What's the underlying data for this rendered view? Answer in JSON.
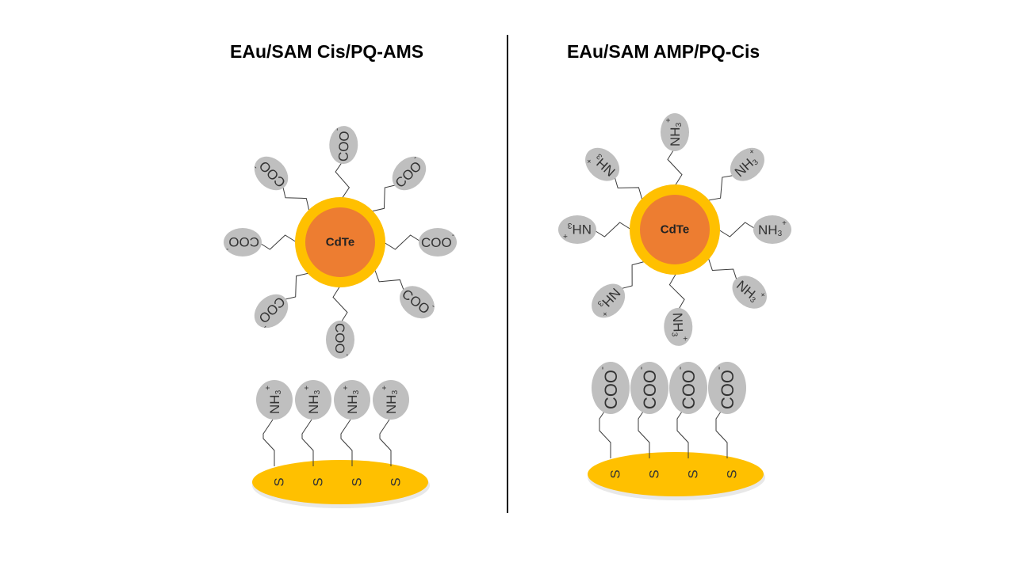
{
  "titles": {
    "left": "EAu/SAM Cis/PQ-AMS",
    "right": "EAu/SAM AMP/PQ-Cis"
  },
  "core_label": "CdTe",
  "groups": {
    "carboxylate": {
      "base": "COO",
      "charge": "-"
    },
    "ammonium": {
      "base": "NH",
      "subscript": "3",
      "charge": "+"
    }
  },
  "surface_atom": "S",
  "colors": {
    "gold": "#FFC000",
    "core": "#ED7D31",
    "ligand_ellipse": "#BFBFBF",
    "text": "#333333",
    "divider": "#000000"
  }
}
